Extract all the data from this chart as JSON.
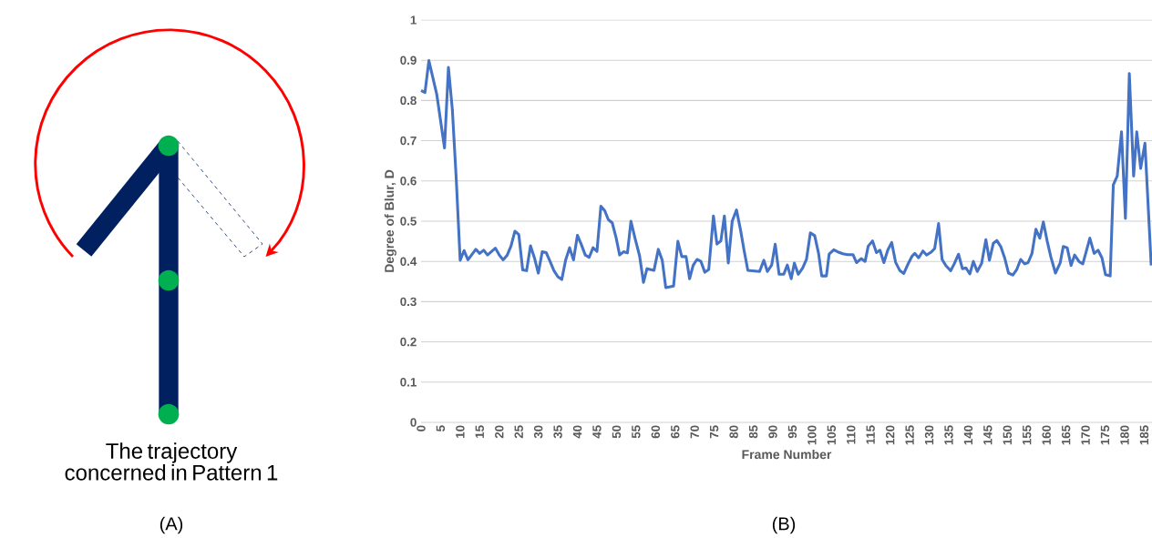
{
  "chart_data": {
    "type": "line",
    "xlabel": "Frame Number",
    "ylabel": "Degree of Blur, D",
    "color": "#4472c4",
    "grid": "y",
    "annotations": [
      "The trajectory concerned in Pattern 1",
      "(A)",
      "(B)"
    ],
    "xlim": [
      0,
      187
    ],
    "xticks": [
      0,
      5,
      10,
      15,
      20,
      25,
      30,
      35,
      40,
      45,
      50,
      55,
      60,
      65,
      70,
      75,
      80,
      85,
      90,
      95,
      100,
      105,
      110,
      115,
      120,
      125,
      130,
      135,
      140,
      145,
      150,
      155,
      160,
      165,
      170,
      175,
      180,
      185
    ],
    "ylim": [
      0,
      1
    ],
    "yticks": [
      0,
      0.1,
      0.2,
      0.3,
      0.4,
      0.5,
      0.6,
      0.7,
      0.8,
      0.9,
      1
    ],
    "x": [
      0,
      1,
      2,
      4,
      6,
      7,
      8,
      9,
      10,
      11,
      12,
      14,
      15,
      16,
      17,
      19,
      20,
      21,
      22,
      23,
      24,
      25,
      26,
      27,
      28,
      29,
      30,
      31,
      32,
      33,
      34,
      35,
      36,
      37,
      38,
      39,
      40,
      41,
      42,
      43,
      44,
      45,
      46,
      47,
      47.9,
      48.9,
      49.9,
      50.8,
      51.8,
      52.8,
      53.7,
      54.7,
      55.9,
      56.9,
      57.8,
      59.6,
      60.7,
      61.7,
      62.6,
      64.6,
      65.7,
      66.7,
      67.8,
      68.7,
      69.6,
      70.6,
      71.6,
      72.6,
      73.6,
      74.8,
      75.7,
      76.7,
      77.6,
      78.6,
      79.6,
      80.7,
      81.7,
      82.7,
      83.6,
      86.6,
      87.7,
      88.6,
      89.7,
      90.6,
      91.6,
      92.8,
      93.7,
      94.7,
      95.5,
      96.5,
      97.6,
      98.6,
      99.6,
      100.7,
      101.7,
      102.5,
      103.7,
      104.4,
      105.6,
      106.8,
      107.9,
      109.1,
      110.5,
      111.4,
      112.6,
      113.6,
      114.4,
      115.5,
      116.5,
      117.4,
      118.4,
      119.4,
      120.4,
      121.4,
      122.5,
      123.5,
      124.6,
      125.6,
      126.3,
      127.3,
      128.4,
      129.3,
      130.5,
      131.4,
      132.4,
      133.3,
      134.3,
      135.5,
      136.4,
      137.5,
      138.5,
      139.4,
      140.4,
      141.3,
      142.3,
      143.4,
      144.5,
      145.4,
      146.4,
      147.3,
      148.3,
      149.3,
      150.3,
      151.4,
      152.4,
      153.4,
      154.4,
      155.3,
      156.3,
      157.3,
      158.3,
      159.2,
      160.2,
      161.1,
      162.3,
      163.5,
      164.3,
      165.3,
      166.3,
      167.2,
      168.3,
      169.3,
      170.1,
      171.1,
      172.2,
      173.2,
      174.2,
      175.1,
      176.3,
      177.1,
      178.1,
      179.2,
      180.2,
      181.2,
      182.3,
      183.1,
      184.1,
      185.2,
      186.8
    ],
    "values": [
      0.825,
      0.82,
      0.899,
      0.816,
      0.682,
      0.882,
      0.778,
      0.605,
      0.403,
      0.427,
      0.404,
      0.43,
      0.42,
      0.428,
      0.416,
      0.433,
      0.416,
      0.404,
      0.415,
      0.438,
      0.475,
      0.467,
      0.379,
      0.377,
      0.439,
      0.409,
      0.371,
      0.424,
      0.422,
      0.4,
      0.377,
      0.362,
      0.355,
      0.404,
      0.434,
      0.404,
      0.465,
      0.442,
      0.416,
      0.41,
      0.434,
      0.425,
      0.537,
      0.526,
      0.504,
      0.496,
      0.459,
      0.416,
      0.424,
      0.421,
      0.5,
      0.459,
      0.414,
      0.348,
      0.382,
      0.378,
      0.43,
      0.403,
      0.335,
      0.339,
      0.45,
      0.412,
      0.412,
      0.357,
      0.39,
      0.405,
      0.4,
      0.373,
      0.38,
      0.513,
      0.443,
      0.451,
      0.513,
      0.396,
      0.5,
      0.528,
      0.48,
      0.424,
      0.378,
      0.375,
      0.403,
      0.375,
      0.391,
      0.443,
      0.368,
      0.368,
      0.391,
      0.357,
      0.396,
      0.368,
      0.383,
      0.405,
      0.471,
      0.464,
      0.42,
      0.364,
      0.364,
      0.418,
      0.429,
      0.423,
      0.419,
      0.417,
      0.417,
      0.397,
      0.407,
      0.4,
      0.438,
      0.451,
      0.422,
      0.428,
      0.397,
      0.428,
      0.447,
      0.398,
      0.377,
      0.37,
      0.394,
      0.413,
      0.42,
      0.409,
      0.426,
      0.416,
      0.423,
      0.432,
      0.494,
      0.405,
      0.389,
      0.377,
      0.394,
      0.418,
      0.382,
      0.384,
      0.369,
      0.4,
      0.375,
      0.395,
      0.454,
      0.403,
      0.445,
      0.452,
      0.437,
      0.409,
      0.371,
      0.366,
      0.38,
      0.405,
      0.394,
      0.397,
      0.42,
      0.48,
      0.458,
      0.498,
      0.45,
      0.412,
      0.371,
      0.396,
      0.437,
      0.434,
      0.39,
      0.416,
      0.4,
      0.394,
      0.422,
      0.458,
      0.42,
      0.428,
      0.409,
      0.367,
      0.364,
      0.59,
      0.612,
      0.722,
      0.507,
      0.867,
      0.612,
      0.722,
      0.631,
      0.694,
      0.39
    ]
  }
}
